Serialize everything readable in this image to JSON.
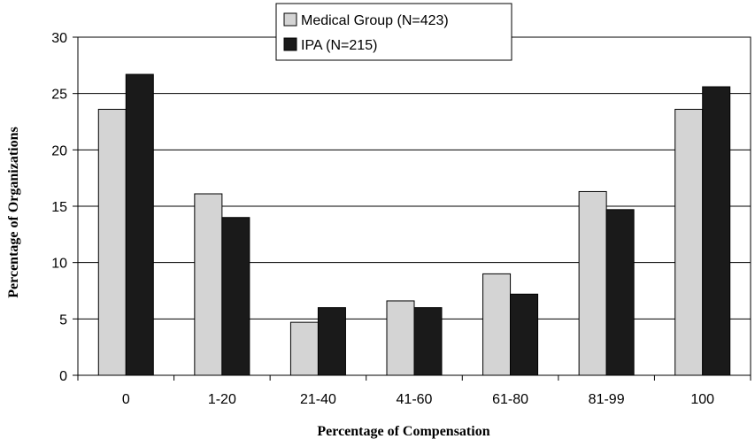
{
  "chart_data": {
    "type": "bar",
    "categories": [
      "0",
      "1-20",
      "21-40",
      "41-60",
      "61-80",
      "81-99",
      "100"
    ],
    "series": [
      {
        "name": "Medical Group (N=423)",
        "values": [
          23.6,
          16.1,
          4.7,
          6.6,
          9.0,
          16.3,
          23.6
        ],
        "color": "#d4d4d4"
      },
      {
        "name": "IPA (N=215)",
        "values": [
          26.7,
          14.0,
          6.0,
          6.0,
          7.2,
          14.7,
          25.6
        ],
        "color": "#1a1a1a"
      }
    ],
    "xlabel": "Percentage of Compensation",
    "ylabel": "Percentage of Organizations",
    "ylim": [
      0,
      30
    ],
    "yticks": [
      0,
      5,
      10,
      15,
      20,
      25,
      30
    ],
    "grid": true,
    "legend_position": "top-center"
  }
}
